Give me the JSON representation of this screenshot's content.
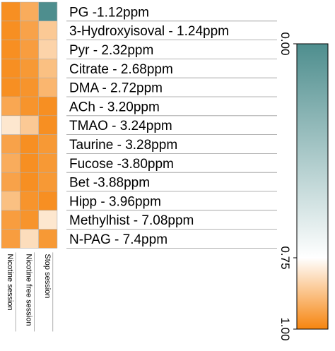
{
  "chart_data": {
    "type": "heatmap",
    "rows": [
      "PG -1.12ppm",
      "3-Hydroxyisoval - 1.24ppm",
      "Pyr - 2.32ppm",
      "Citrate - 2.68ppm",
      "DMA - 2.72ppm",
      "ACh - 3.20ppm",
      "TMAO - 3.24ppm",
      "Taurine - 3.28ppm",
      "Fucose -3.80ppm",
      "Bet -3.88ppm",
      "Hipp - 3.96ppm",
      "Methylhist - 7.08ppm",
      "N-PAG - 7.4ppm"
    ],
    "columns": [
      "Nicotine session",
      "Nicotine free session",
      "Stop session"
    ],
    "values": [
      [
        0.98,
        0.92,
        0.0
      ],
      [
        0.98,
        0.94,
        0.86
      ],
      [
        0.98,
        0.95,
        0.84
      ],
      [
        0.98,
        0.96,
        0.88
      ],
      [
        0.98,
        0.97,
        0.9
      ],
      [
        0.93,
        0.97,
        0.98
      ],
      [
        0.8,
        0.86,
        0.98
      ],
      [
        0.94,
        0.98,
        0.96
      ],
      [
        0.92,
        0.98,
        0.96
      ],
      [
        0.94,
        0.98,
        0.96
      ],
      [
        0.88,
        0.97,
        0.98
      ],
      [
        0.95,
        0.97,
        0.8
      ],
      [
        0.95,
        0.82,
        0.96
      ]
    ],
    "colorbar": {
      "range": [
        0.0,
        1.0
      ],
      "tick_labels": [
        "0.00",
        "0.75",
        "1.00"
      ],
      "tick_values": [
        0.0,
        0.75,
        1.0
      ],
      "colors": [
        "#4e8e8e",
        "#ffffff",
        "#f6850f"
      ]
    }
  }
}
